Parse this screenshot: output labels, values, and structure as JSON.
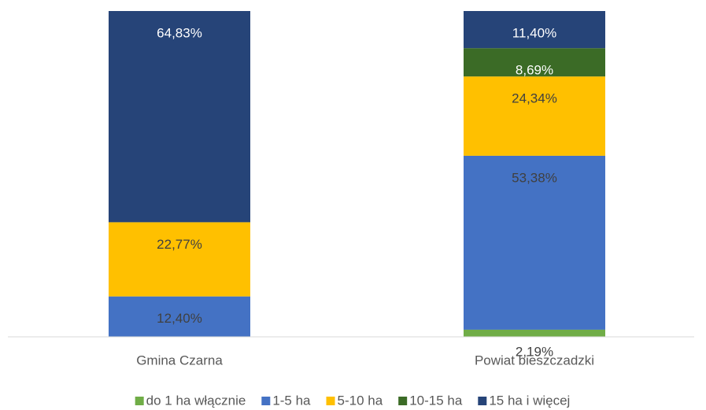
{
  "chart_data": {
    "type": "stacked_bar",
    "categories": [
      "Gmina Czarna",
      "Powiat bieszczadzki"
    ],
    "ylim": [
      0,
      100
    ],
    "legend": "bottom",
    "series": [
      {
        "name": "do 1 ha włącznie",
        "color": "#70ad47",
        "label_color": "#404040",
        "values": [
          null,
          2.19
        ],
        "value_labels": [
          null,
          "2,19%"
        ]
      },
      {
        "name": "1-5 ha",
        "color": "#4472c4",
        "label_color": "#404040",
        "values": [
          12.4,
          53.38
        ],
        "value_labels": [
          "12,40%",
          "53,38%"
        ]
      },
      {
        "name": "5-10 ha",
        "color": "#ffc000",
        "label_color": "#404040",
        "values": [
          22.77,
          24.34
        ],
        "value_labels": [
          "22,77%",
          "24,34%"
        ]
      },
      {
        "name": "10-15 ha",
        "color": "#3b6b26",
        "label_color": "#ffffff",
        "values": [
          null,
          8.69
        ],
        "value_labels": [
          null,
          "8,69%"
        ]
      },
      {
        "name": "15 ha i więcej",
        "color": "#264478",
        "label_color": "#ffffff",
        "values": [
          64.83,
          11.4
        ],
        "value_labels": [
          "64,83%",
          "11,40%"
        ]
      }
    ]
  }
}
